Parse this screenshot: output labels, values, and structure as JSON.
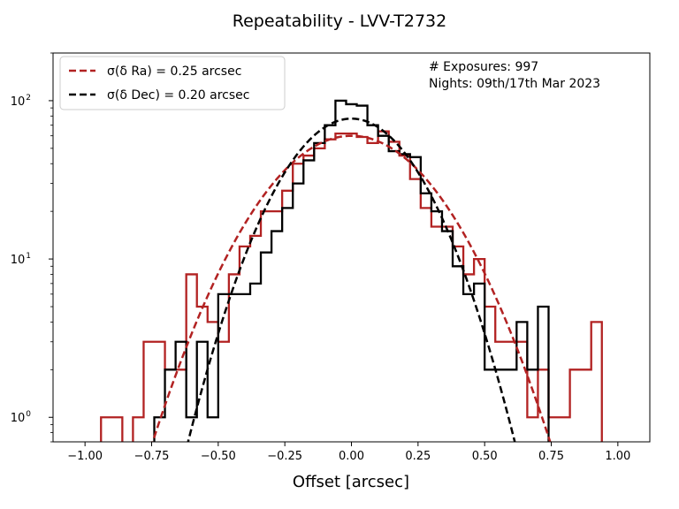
{
  "chart_data": {
    "type": "histogram",
    "title": "Repeatability - LVV-T2732",
    "xlabel": "Offset [arcsec]",
    "ylabel": "",
    "xlim": [
      -1.12,
      1.12
    ],
    "ylim": [
      0.7,
      200
    ],
    "yscale": "log",
    "xticks": [
      -1.0,
      -0.75,
      -0.5,
      -0.25,
      0.0,
      0.25,
      0.5,
      0.75,
      1.0
    ],
    "xtick_labels": [
      "−1.00",
      "−0.75",
      "−0.50",
      "−0.25",
      "0.00",
      "0.25",
      "0.50",
      "0.75",
      "1.00"
    ],
    "yticks": [
      1,
      10,
      100
    ],
    "bin_edges": [
      -0.94,
      -0.9,
      -0.86,
      -0.82,
      -0.78,
      -0.74,
      -0.7,
      -0.66,
      -0.62,
      -0.58,
      -0.54,
      -0.5,
      -0.46,
      -0.42,
      -0.38,
      -0.34,
      -0.3,
      -0.26,
      -0.22,
      -0.18,
      -0.14,
      -0.1,
      -0.06,
      -0.02,
      0.02,
      0.06,
      0.1,
      0.14,
      0.18,
      0.22,
      0.26,
      0.3,
      0.34,
      0.38,
      0.42,
      0.46,
      0.5,
      0.54,
      0.58,
      0.62,
      0.66,
      0.7,
      0.74,
      0.78,
      0.82,
      0.86,
      0.9,
      0.94
    ],
    "series": [
      {
        "name": "Ra",
        "color": "#b22222",
        "counts": [
          1,
          1,
          0,
          1,
          3,
          3,
          2,
          2,
          8,
          5,
          4,
          3,
          8,
          12,
          14,
          20,
          20,
          27,
          40,
          45,
          50,
          57,
          62,
          62,
          59,
          54,
          64,
          55,
          45,
          32,
          21,
          16,
          16,
          12,
          8,
          10,
          5,
          3,
          3,
          3,
          1,
          2,
          1,
          1,
          2,
          2,
          4
        ]
      },
      {
        "name": "Dec",
        "color": "#000000",
        "counts": [
          0,
          0,
          0,
          0,
          0,
          1,
          2,
          3,
          1,
          3,
          1,
          6,
          6,
          6,
          7,
          11,
          15,
          21,
          30,
          42,
          54,
          70,
          100,
          95,
          93,
          70,
          60,
          48,
          46,
          44,
          26,
          20,
          15,
          9,
          6,
          7,
          2,
          2,
          2,
          4,
          2,
          5,
          0,
          0,
          0,
          0,
          0
        ]
      }
    ],
    "fits": [
      {
        "name": "Ra",
        "sigma": 0.25,
        "peak": 60,
        "color": "#b22222"
      },
      {
        "name": "Dec",
        "sigma": 0.2,
        "peak": 77,
        "color": "#000000"
      }
    ],
    "legend": {
      "position": "top-left",
      "entries": [
        {
          "label": "σ(δ Ra) = 0.25 arcsec",
          "color": "#b22222"
        },
        {
          "label": "σ(δ Dec) = 0.20 arcsec",
          "color": "#000000"
        }
      ]
    },
    "annotations": [
      "# Exposures: 997",
      "Nights: 09th/17th Mar 2023"
    ]
  }
}
